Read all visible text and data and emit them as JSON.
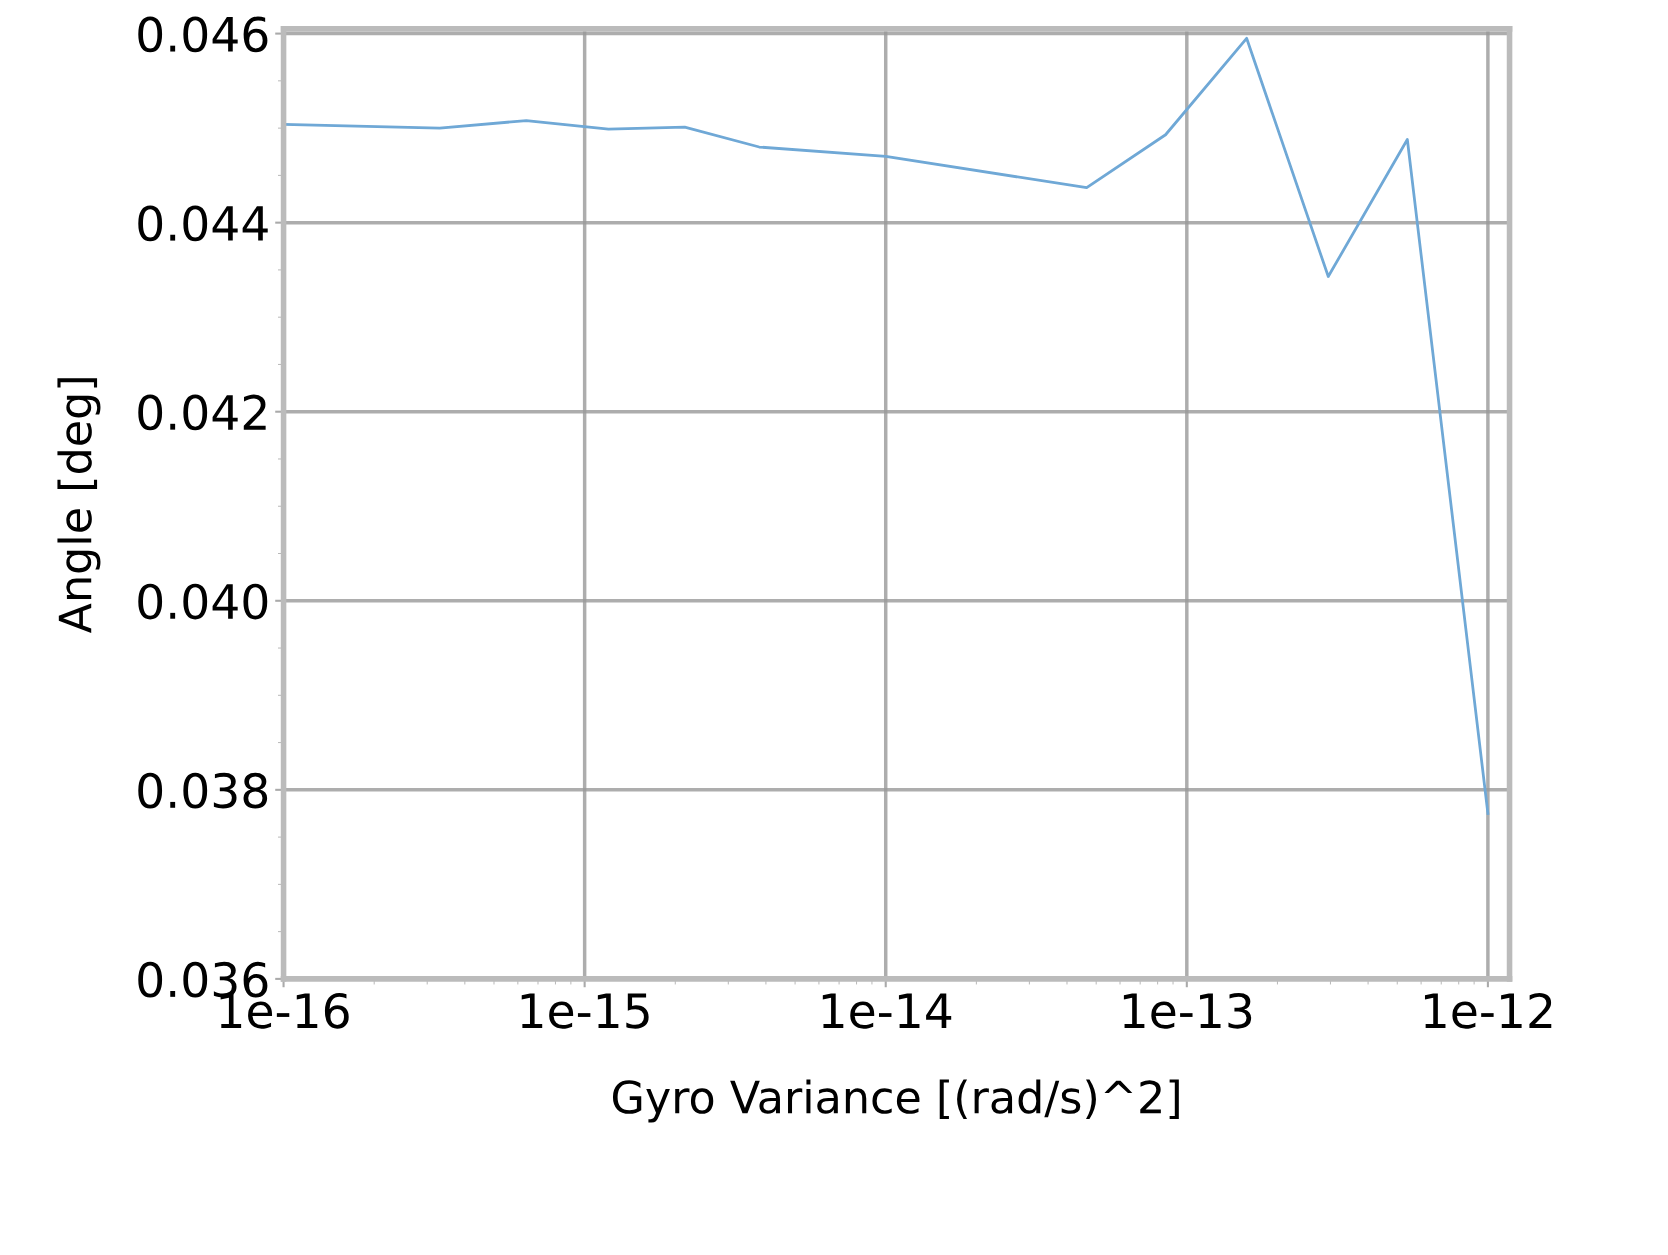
{
  "chart_data": {
    "type": "line",
    "xlabel": "Gyro Variance [(rad/s)^2]",
    "ylabel": "Angle [deg]",
    "log": "x",
    "x": [
      1e-16,
      3.3e-16,
      6.4e-16,
      1.2e-15,
      2.15e-15,
      3.8e-15,
      1e-14,
      4.65e-14,
      8.5e-14,
      1.58e-13,
      2.95e-13,
      5.4e-13,
      1e-12
    ],
    "series": [
      {
        "color": "#6fa8d6",
        "values": [
          0.04504,
          0.045,
          0.04508,
          0.04499,
          0.04501,
          0.0448,
          0.0447,
          0.04437,
          0.04493,
          0.04595,
          0.04343,
          0.04488,
          0.03775
        ]
      }
    ],
    "xlim": [
      1e-16,
      1.18e-12
    ],
    "ylim": [
      0.036,
      0.04605
    ],
    "xticks": [
      {
        "value": 1e-16,
        "label": "1e-16"
      },
      {
        "value": 1e-15,
        "label": "1e-15"
      },
      {
        "value": 1e-14,
        "label": "1e-14"
      },
      {
        "value": 1e-13,
        "label": "1e-13"
      },
      {
        "value": 1e-12,
        "label": "1e-12"
      }
    ],
    "yticks": [
      {
        "value": 0.036,
        "label": "0.036"
      },
      {
        "value": 0.038,
        "label": "0.038"
      },
      {
        "value": 0.04,
        "label": "0.040"
      },
      {
        "value": 0.042,
        "label": "0.042"
      },
      {
        "value": 0.044,
        "label": "0.044"
      },
      {
        "value": 0.046,
        "label": "0.046"
      }
    ],
    "grid": true,
    "marker": "none",
    "line_style": "solid"
  }
}
